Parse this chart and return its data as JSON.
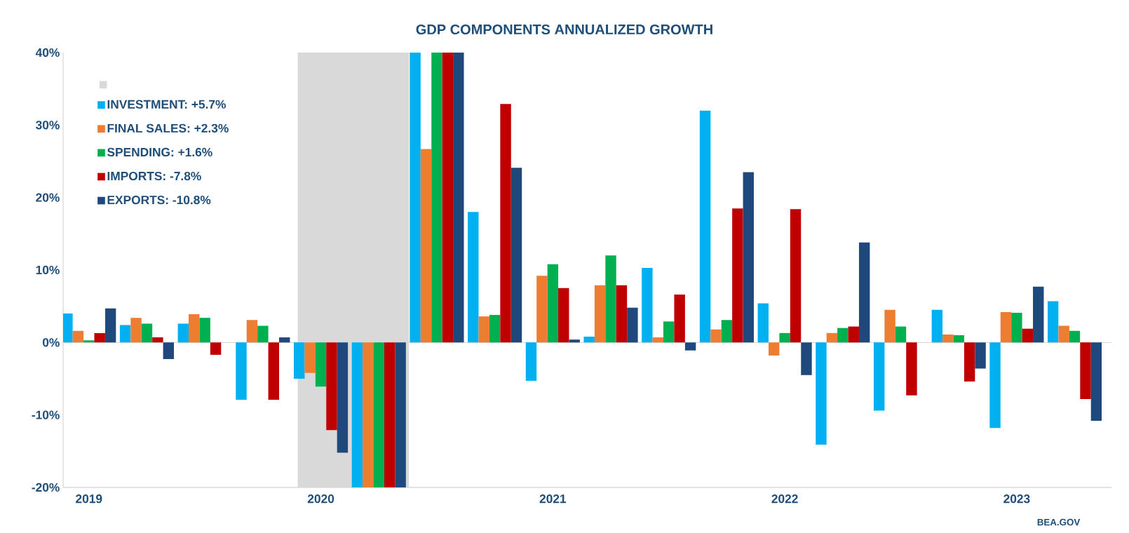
{
  "chart_data": {
    "type": "bar",
    "title": "GDP COMPONENTS ANNUALIZED GROWTH",
    "x": [
      "2019-01",
      "2019-04",
      "2019-07",
      "2019-10",
      "2020-01",
      "2020-04",
      "2020-07",
      "2020-10",
      "2021-01",
      "2021-04",
      "2021-07",
      "2021-10",
      "2022-01",
      "2022-04",
      "2022-07",
      "2022-10",
      "2023-01",
      "2023-04"
    ],
    "series": [
      {
        "name": "INVESTMENT: +5.7%",
        "color": "#00b0f0",
        "values": [
          4.0,
          2.4,
          2.6,
          -7.9,
          -5.0,
          -20,
          40,
          18.0,
          -5.3,
          0.8,
          10.3,
          32.0,
          5.4,
          -14.1,
          -9.4,
          4.5,
          -11.8,
          5.7
        ]
      },
      {
        "name": "FINAL SALES: +2.3%",
        "color": "#ed7d31",
        "values": [
          1.6,
          3.4,
          3.9,
          3.1,
          -4.2,
          -20,
          26.7,
          3.6,
          9.2,
          7.9,
          0.7,
          1.8,
          -1.8,
          1.3,
          4.5,
          1.1,
          4.2,
          2.3
        ]
      },
      {
        "name": "SPENDING: +1.6%",
        "color": "#00b050",
        "values": [
          0.3,
          2.6,
          3.4,
          2.3,
          -6.1,
          -20,
          40,
          3.8,
          10.8,
          12.0,
          2.9,
          3.1,
          1.3,
          2.0,
          2.2,
          1.0,
          4.1,
          1.6
        ]
      },
      {
        "name": "IMPORTS: -7.8%",
        "color": "#c00000",
        "values": [
          1.3,
          0.7,
          -1.7,
          -7.9,
          -12.1,
          -20,
          40,
          32.9,
          7.5,
          7.9,
          6.6,
          18.5,
          18.4,
          2.2,
          -7.3,
          -5.4,
          1.9,
          -7.8
        ]
      },
      {
        "name": "EXPORTS: -10.8%",
        "color": "#1f497d",
        "values": [
          4.7,
          -2.3,
          null,
          0.7,
          -15.2,
          -20,
          40,
          24.1,
          0.4,
          4.8,
          -1.1,
          23.5,
          -4.5,
          13.8,
          null,
          -3.6,
          7.7,
          -10.8
        ]
      }
    ],
    "xlim": [
      "2018-11-21",
      "2023-05-28"
    ],
    "xticks": [
      {
        "value": "2019-01",
        "label": "2019"
      },
      {
        "value": "2020-01",
        "label": "2020"
      },
      {
        "value": "2021-01",
        "label": "2021"
      },
      {
        "value": "2022-01",
        "label": "2022"
      },
      {
        "value": "2023-01",
        "label": "2023"
      }
    ],
    "ylim": [
      -20,
      40
    ],
    "yticks": [
      {
        "value": -20,
        "label": "-20%"
      },
      {
        "value": -10,
        "label": "-10%"
      },
      {
        "value": 0,
        "label": "0%"
      },
      {
        "value": 10,
        "label": "10%"
      },
      {
        "value": 20,
        "label": "20%"
      },
      {
        "value": 30,
        "label": "30%"
      },
      {
        "value": 40,
        "label": "40%"
      }
    ],
    "bands": [
      {
        "axis": "x",
        "from": "2019-11-25",
        "to": "2020-05-18",
        "color": "#d9d9d9"
      }
    ],
    "legend": "top left",
    "annotations": [
      "BEA.GOV"
    ]
  }
}
